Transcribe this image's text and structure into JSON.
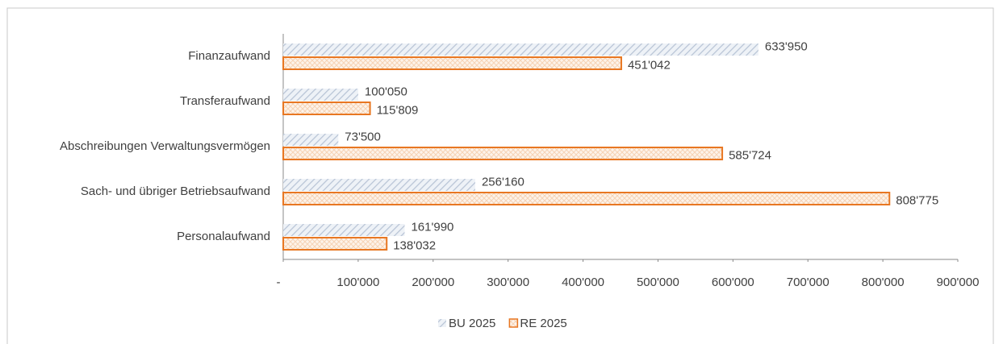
{
  "chart_data": {
    "type": "hbar",
    "categories": [
      "Finanzaufwand",
      "Transferaufwand",
      "Abschreibungen Verwaltungsvermögen",
      "Sach- und übriger Betriebsaufwand",
      "Personalaufwand"
    ],
    "series": [
      {
        "name": "BU 2025",
        "color": "#c9d3e2",
        "values": [
          633950,
          100050,
          73500,
          256160,
          161990
        ],
        "value_labels": [
          "633'950",
          "100'050",
          "73'500",
          "256'160",
          "161'990"
        ]
      },
      {
        "name": "RE 2025",
        "color": "#e87722",
        "values": [
          451042,
          115809,
          585724,
          808775,
          138032
        ],
        "value_labels": [
          "451'042",
          "115'809",
          "585'724",
          "808'775",
          "138'032"
        ]
      }
    ],
    "xlim": [
      0,
      900000
    ],
    "xticks": [
      {
        "value": 0,
        "label": "-"
      },
      {
        "value": 100000,
        "label": "100'000"
      },
      {
        "value": 200000,
        "label": "200'000"
      },
      {
        "value": 300000,
        "label": "300'000"
      },
      {
        "value": 400000,
        "label": "400'000"
      },
      {
        "value": 500000,
        "label": "500'000"
      },
      {
        "value": 600000,
        "label": "600'000"
      },
      {
        "value": 700000,
        "label": "700'000"
      },
      {
        "value": 800000,
        "label": "800'000"
      },
      {
        "value": 900000,
        "label": "900'000"
      }
    ],
    "grid": false,
    "legend": "bottom"
  }
}
